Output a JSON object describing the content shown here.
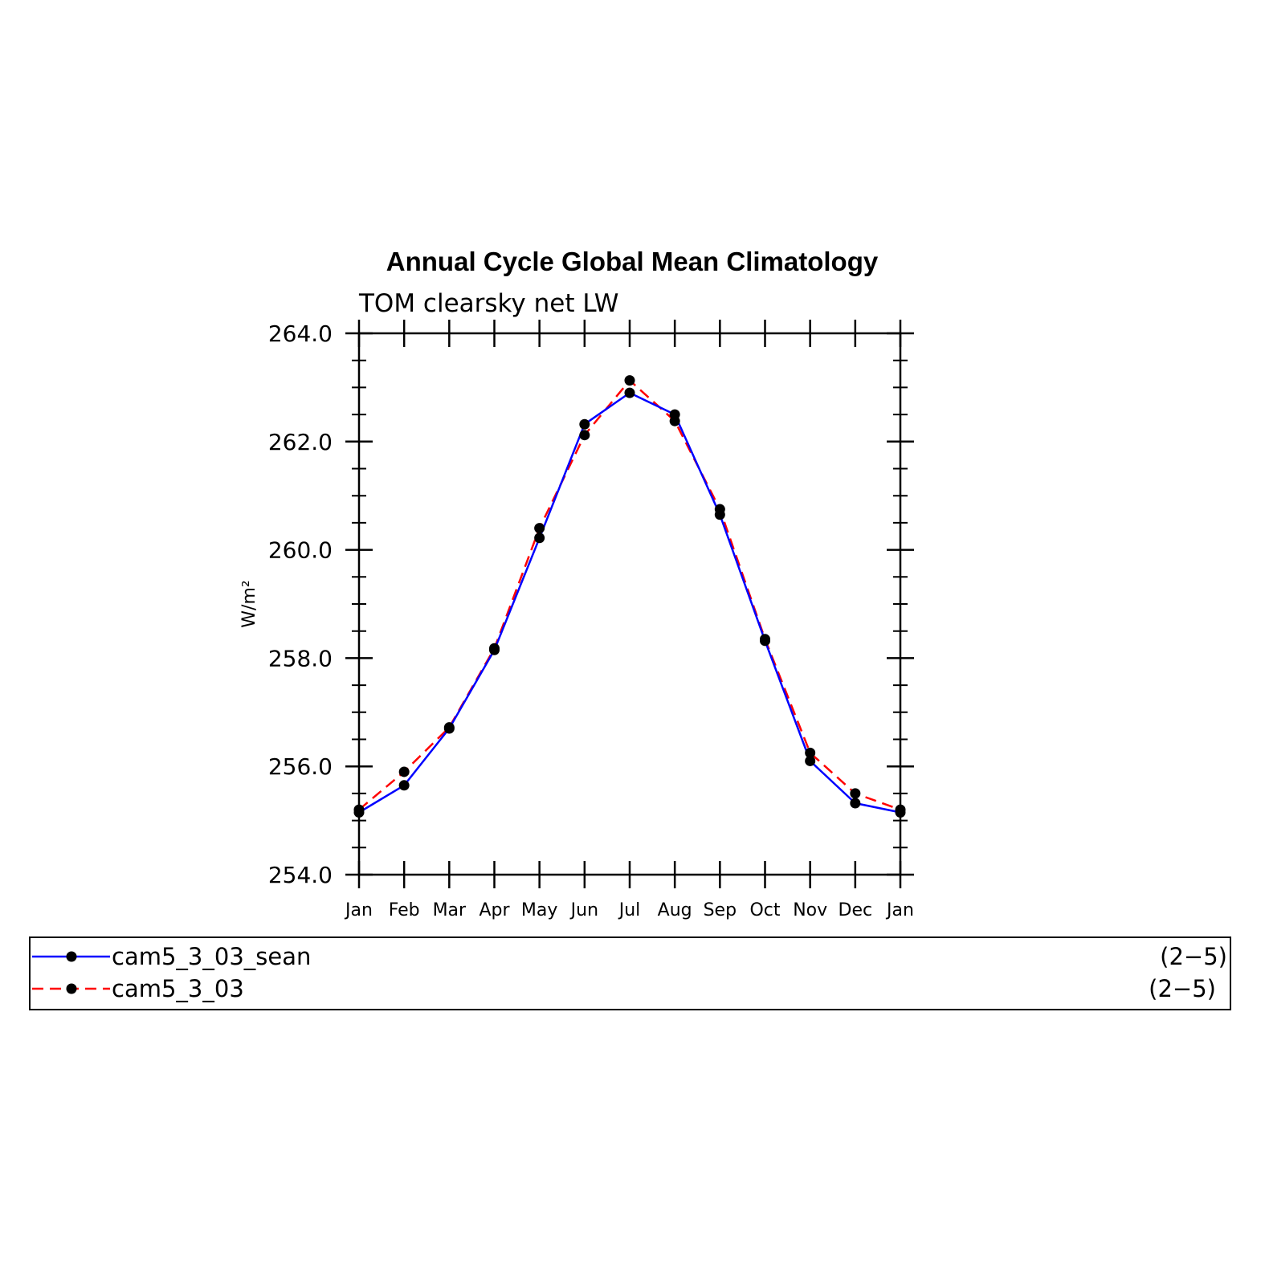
{
  "chart_data": {
    "type": "line",
    "title": "Annual Cycle Global Mean Climatology",
    "subtitle": "TOM clearsky net LW",
    "ylabel": "W/m²",
    "xlabel": "",
    "categories": [
      "Jan",
      "Feb",
      "Mar",
      "Apr",
      "May",
      "Jun",
      "Jul",
      "Aug",
      "Sep",
      "Oct",
      "Nov",
      "Dec",
      "Jan"
    ],
    "ylim": [
      254.0,
      264.0
    ],
    "yticks": [
      "254.0",
      "256.0",
      "258.0",
      "260.0",
      "262.0",
      "264.0"
    ],
    "grid": false,
    "legend_position": "bottom",
    "series": [
      {
        "name": "cam5_3_03_sean",
        "range": "(2−5)",
        "color": "#0000ff",
        "dash": "solid",
        "values": [
          255.15,
          255.65,
          256.7,
          258.15,
          260.22,
          262.32,
          262.9,
          262.5,
          260.65,
          258.32,
          256.1,
          255.32,
          255.15
        ]
      },
      {
        "name": "cam5_3_03",
        "range": "(2−5)",
        "color": "#ff0000",
        "dash": "dashed",
        "values": [
          255.2,
          255.9,
          256.72,
          258.18,
          260.4,
          262.12,
          263.13,
          262.38,
          260.75,
          258.35,
          256.25,
          255.5,
          255.2
        ]
      }
    ]
  }
}
